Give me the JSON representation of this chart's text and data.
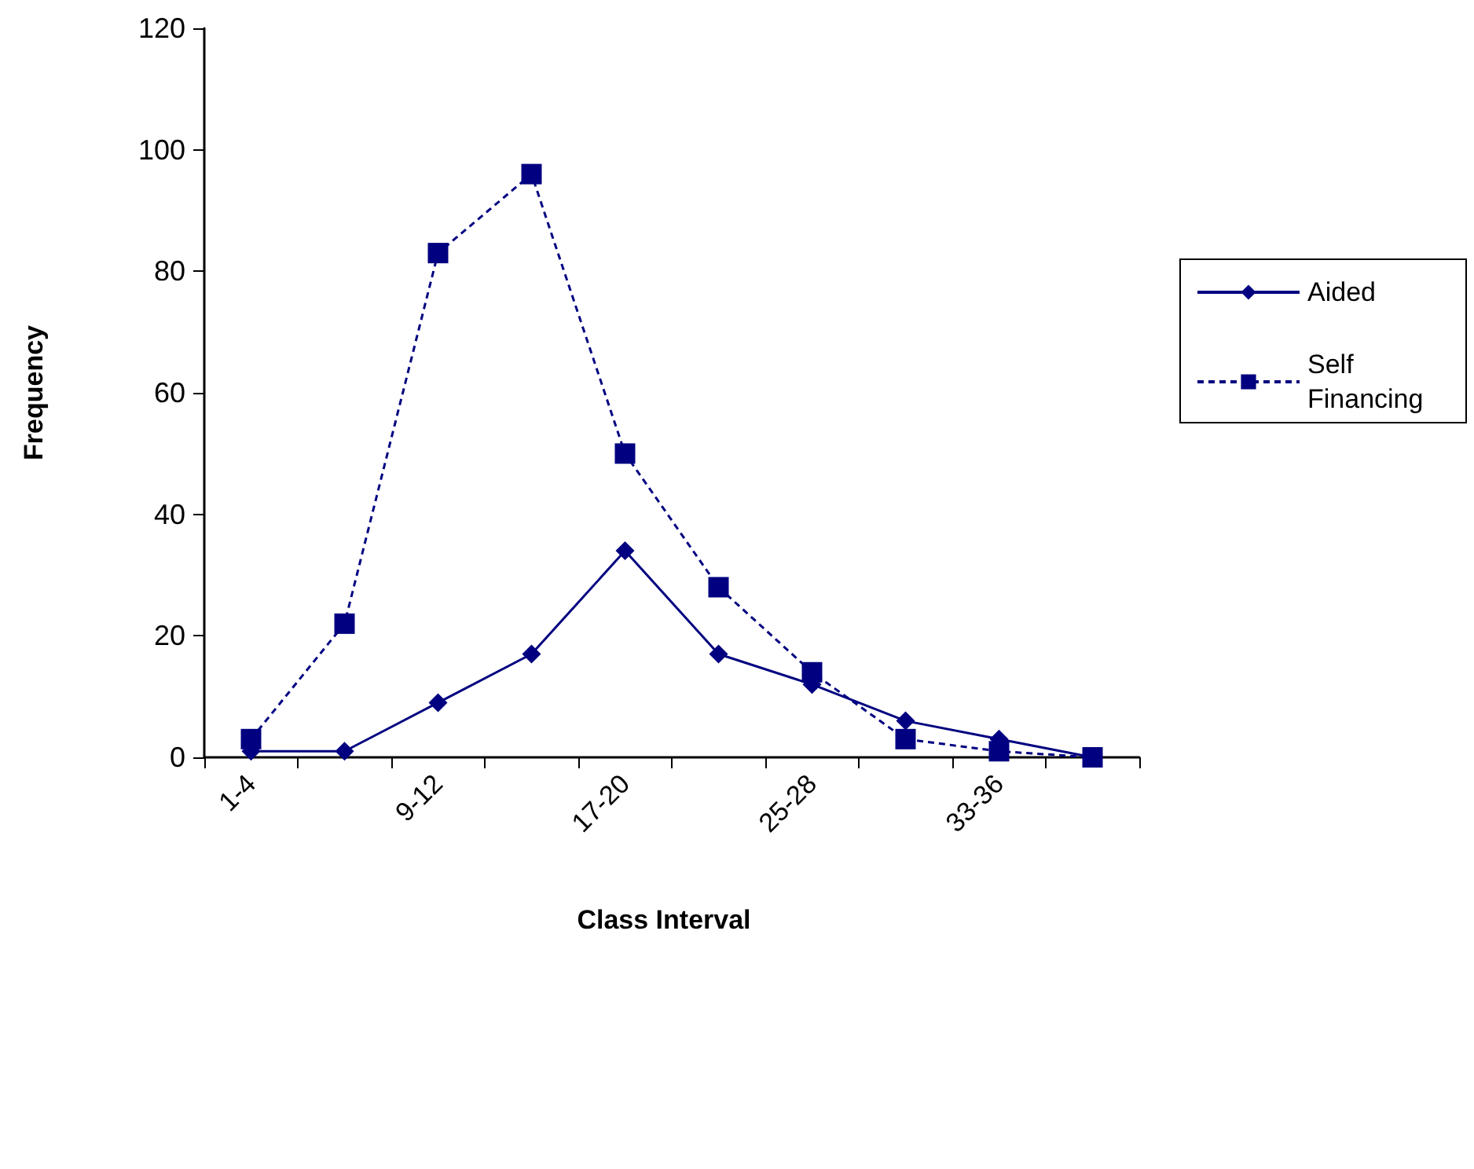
{
  "chart_data": {
    "type": "line",
    "xlabel": "Class Interval",
    "ylabel": "Frequency",
    "categories": [
      "1-4",
      null,
      "9-12",
      null,
      "17-20",
      null,
      "25-28",
      null,
      "33-36",
      null
    ],
    "series": [
      {
        "name": "Aided",
        "color": "#000080",
        "marker": "diamond",
        "line_style": "solid",
        "values": [
          1,
          1,
          9,
          17,
          34,
          17,
          12,
          6,
          3,
          0
        ]
      },
      {
        "name": "Self Financing",
        "color": "#000080",
        "marker": "square",
        "line_style": "dashed",
        "values": [
          3,
          22,
          83,
          96,
          50,
          28,
          14,
          3,
          1,
          0
        ]
      }
    ],
    "ylim": [
      0,
      120
    ],
    "yticks": [
      0,
      20,
      40,
      60,
      80,
      100,
      120
    ],
    "grid": false,
    "legend": "right"
  }
}
